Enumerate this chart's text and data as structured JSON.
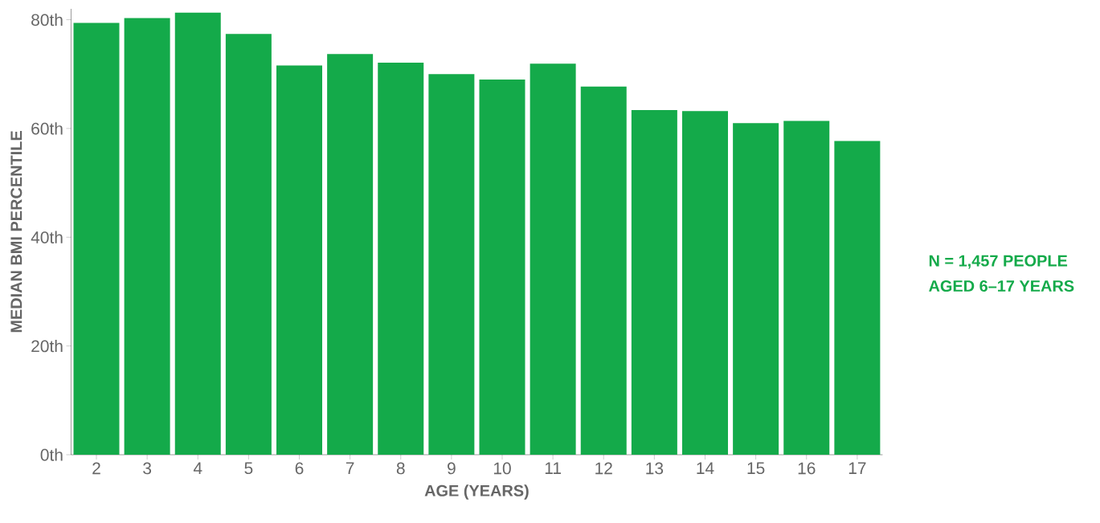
{
  "chart_data": {
    "type": "bar",
    "xlabel": "AGE (YEARS)",
    "ylabel": "MEDIAN BMI PERCENTILE",
    "categories": [
      "2",
      "3",
      "4",
      "5",
      "6",
      "7",
      "8",
      "9",
      "10",
      "11",
      "12",
      "13",
      "14",
      "15",
      "16",
      "17"
    ],
    "values": [
      79.4,
      80.3,
      81.3,
      77.4,
      71.6,
      73.7,
      72.1,
      70.0,
      69.0,
      71.9,
      67.7,
      63.4,
      63.2,
      61.0,
      61.4,
      57.7
    ],
    "color": "#14aa4a",
    "ylim": [
      0,
      82
    ],
    "yticks": [
      {
        "value": 0,
        "label": "0th"
      },
      {
        "value": 20,
        "label": "20th"
      },
      {
        "value": 40,
        "label": "40th"
      },
      {
        "value": 60,
        "label": "60th"
      },
      {
        "value": 80,
        "label": "80th"
      }
    ],
    "grid": false,
    "annotations": [
      "N = 1,457 PEOPLE",
      "AGED 6–17  YEARS"
    ]
  }
}
